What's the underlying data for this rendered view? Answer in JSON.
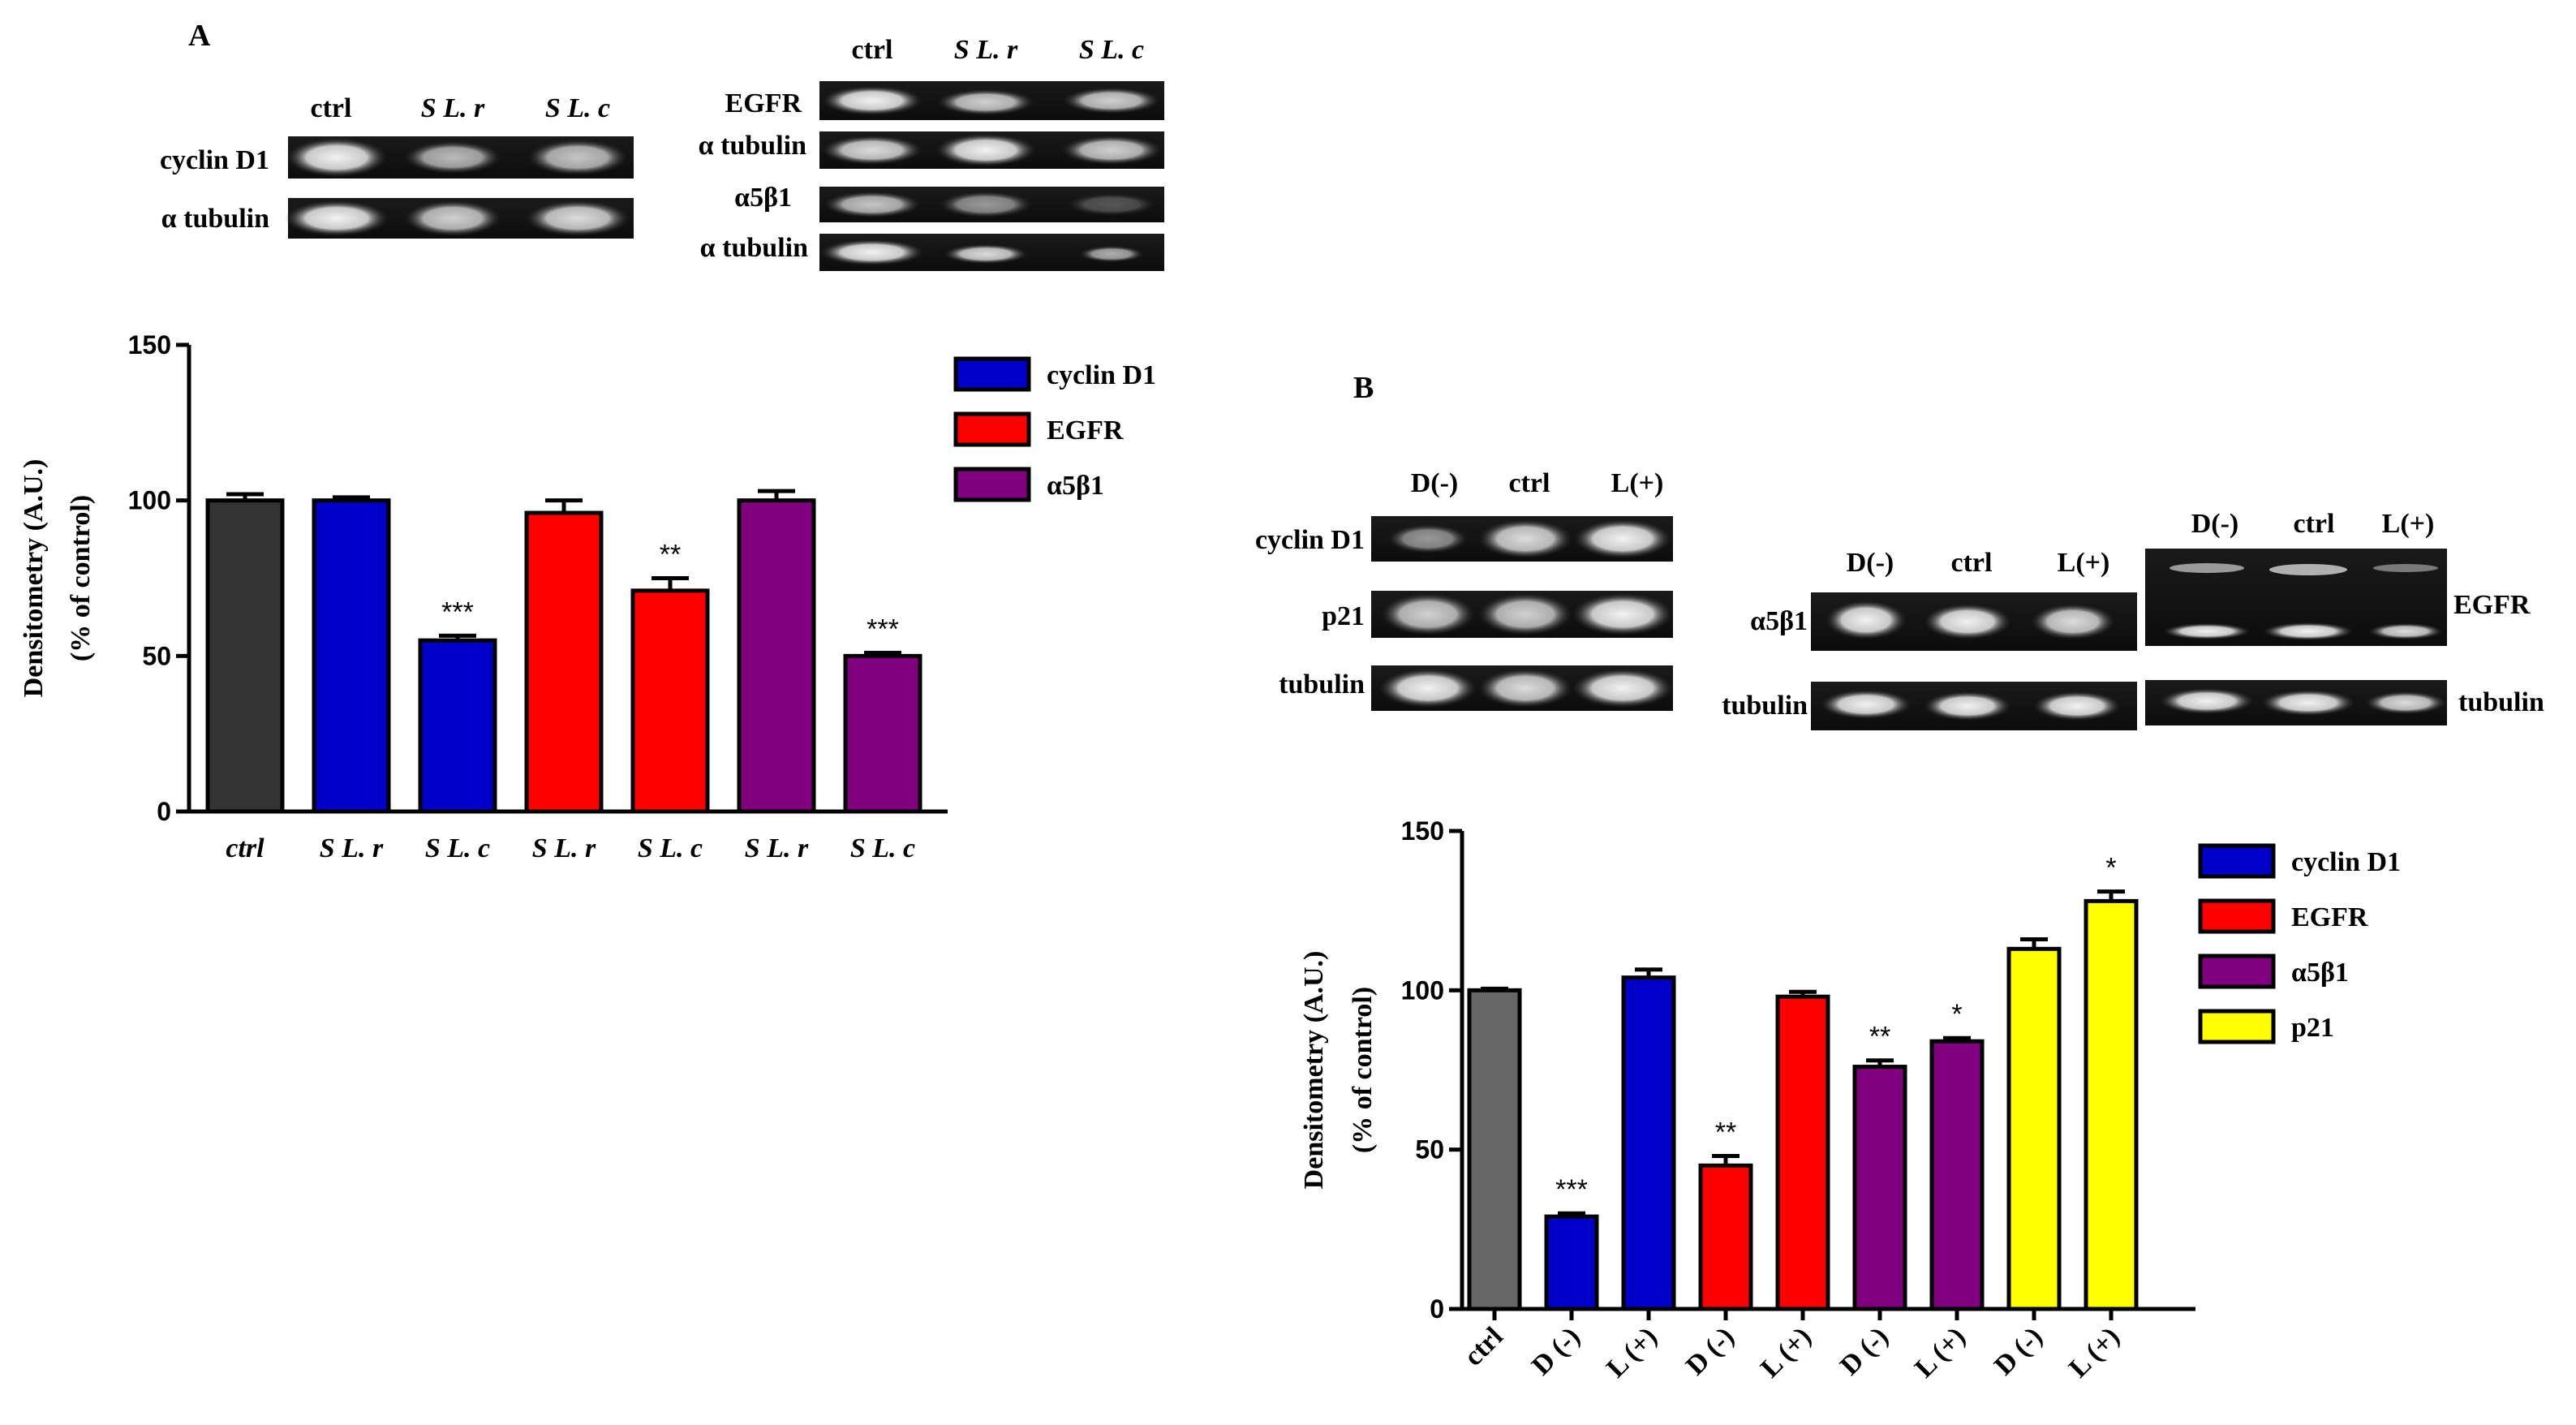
{
  "panel_a": {
    "label": "A",
    "blot_left": {
      "lanes": [
        "ctrl",
        "S L. r",
        "S L. c"
      ],
      "rows": [
        "cyclin D1",
        "α tubulin"
      ]
    },
    "blot_right": {
      "lanes": [
        "ctrl",
        "S L. r",
        "S L. c"
      ],
      "rows": [
        "EGFR",
        "α tubulin",
        "α5β1",
        "α tubulin"
      ]
    }
  },
  "panel_b": {
    "label": "B",
    "blot_1": {
      "lanes": [
        "D(-)",
        "ctrl",
        "L(+)"
      ],
      "rows": [
        "cyclin D1",
        "p21",
        "tubulin"
      ]
    },
    "blot_2": {
      "lanes": [
        "D(-)",
        "ctrl",
        "L(+)"
      ],
      "rows": [
        "α5β1",
        "tubulin"
      ]
    },
    "blot_3": {
      "lanes": [
        "D(-)",
        "ctrl",
        "L(+)"
      ],
      "rows": [
        "EGFR",
        "tubulin"
      ]
    }
  },
  "chart_data": [
    {
      "panel": "A",
      "type": "bar",
      "ylabel": "Densitometry (A.U.)",
      "ylabel2": "(% of control)",
      "ylim": [
        0,
        150
      ],
      "yticks": [
        0,
        50,
        100,
        150
      ],
      "categories": [
        "ctrl",
        "S L. r",
        "S L. c",
        "S L. r",
        "S L. c",
        "S L. r",
        "S L. c"
      ],
      "values": [
        100,
        100,
        55,
        96,
        71,
        100,
        50
      ],
      "errors": [
        2,
        1,
        1.5,
        4,
        4,
        3,
        1
      ],
      "significance": [
        "",
        "",
        "***",
        "",
        "**",
        "",
        "***"
      ],
      "bar_colors": [
        "#333333",
        "#0000c8",
        "#0000c8",
        "#ff0000",
        "#ff0000",
        "#800080",
        "#800080"
      ],
      "legend": [
        {
          "name": "cyclin D1",
          "color": "#0000c8"
        },
        {
          "name": "EGFR",
          "color": "#ff0000"
        },
        {
          "name": "α5β1",
          "color": "#800080"
        }
      ]
    },
    {
      "panel": "B",
      "type": "bar",
      "ylabel": "Densitometry (A.U.)",
      "ylabel2": "(% of control)",
      "ylim": [
        0,
        150
      ],
      "yticks": [
        0,
        50,
        100,
        150
      ],
      "categories": [
        "ctrl",
        "D (-)",
        "L (+)",
        "D (-)",
        "L (+)",
        "D (-)",
        "L (+)",
        "D (-)",
        "L (+)"
      ],
      "values": [
        100,
        29,
        104,
        45,
        98,
        76,
        84,
        113,
        128
      ],
      "errors": [
        0.5,
        1,
        2.5,
        3,
        1.5,
        2,
        1,
        3,
        3
      ],
      "significance": [
        "",
        "***",
        "",
        "**",
        "",
        "**",
        "*",
        "",
        "*"
      ],
      "bar_colors": [
        "#666666",
        "#0000c8",
        "#0000c8",
        "#ff0000",
        "#ff0000",
        "#800080",
        "#800080",
        "#ffff00",
        "#ffff00"
      ],
      "legend": [
        {
          "name": "cyclin D1",
          "color": "#0000c8"
        },
        {
          "name": "EGFR",
          "color": "#ff0000"
        },
        {
          "name": "α5β1",
          "color": "#800080"
        },
        {
          "name": "p21",
          "color": "#ffff00"
        }
      ]
    }
  ]
}
